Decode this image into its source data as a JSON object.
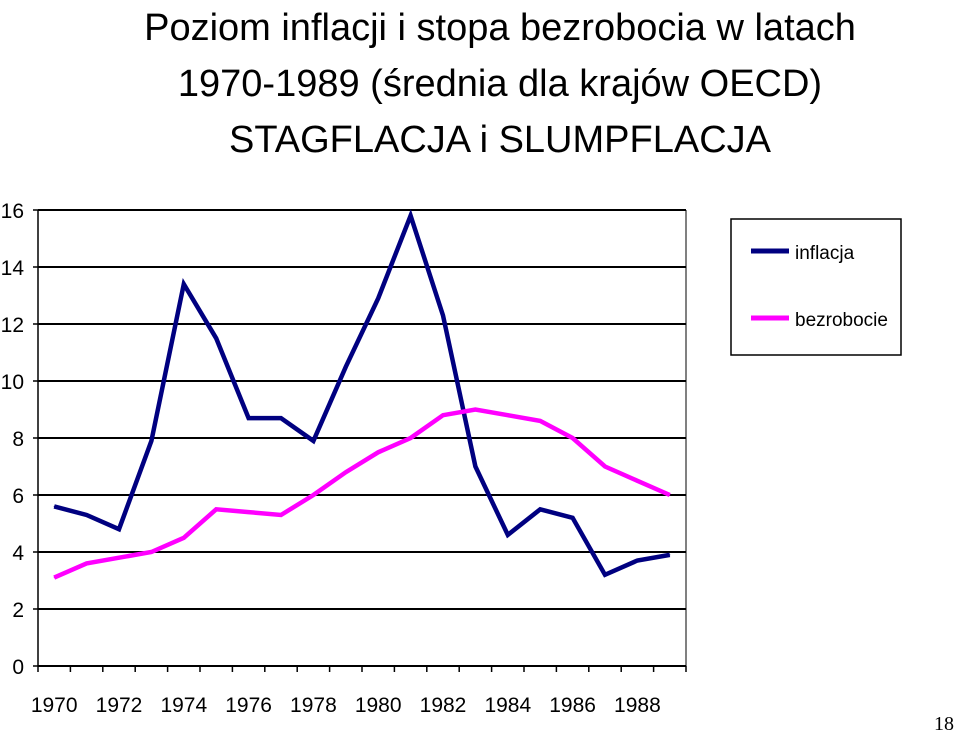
{
  "page": {
    "title_lines": [
      "Poziom inflacji i stopa bezrobocia w latach",
      "1970-1989 (średnia dla krajów OECD)",
      "STAGFLACJA i SLUMPFLACJA"
    ],
    "page_number": "18"
  },
  "chart_data": {
    "type": "line",
    "title": "",
    "xlabel": "",
    "ylabel": "",
    "x": [
      1970,
      1971,
      1972,
      1973,
      1974,
      1975,
      1976,
      1977,
      1978,
      1979,
      1980,
      1981,
      1982,
      1983,
      1984,
      1985,
      1986,
      1987,
      1988,
      1989
    ],
    "x_tick_labels": [
      "1970",
      "1972",
      "1974",
      "1976",
      "1978",
      "1980",
      "1982",
      "1984",
      "1986",
      "1988"
    ],
    "ylim": [
      0,
      16
    ],
    "y_ticks": [
      0,
      2,
      4,
      6,
      8,
      10,
      12,
      14,
      16
    ],
    "grid": "horizontal",
    "legend_position": "top-right",
    "series": [
      {
        "name": "inflacja",
        "color": "#000080",
        "values": [
          5.6,
          5.3,
          4.8,
          7.9,
          13.4,
          11.5,
          8.7,
          8.7,
          7.9,
          10.5,
          12.9,
          15.8,
          12.3,
          7.0,
          4.6,
          5.5,
          5.2,
          3.2,
          3.7,
          3.9
        ]
      },
      {
        "name": "bezrobocie",
        "color": "#ff00ff",
        "values": [
          3.1,
          3.6,
          3.8,
          4.0,
          4.5,
          5.5,
          5.4,
          5.3,
          6.0,
          6.8,
          7.5,
          8.0,
          8.8,
          9.0,
          8.8,
          8.6,
          8.0,
          7.0,
          6.5,
          6.0
        ]
      }
    ]
  }
}
